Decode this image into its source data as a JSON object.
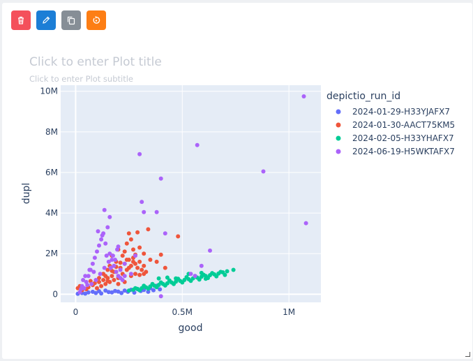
{
  "toolbar": {
    "buttons": [
      {
        "name": "delete-button",
        "icon": "trash-icon",
        "color": "#f4505b"
      },
      {
        "name": "edit-button",
        "icon": "pencil-icon",
        "color": "#1c7ed6"
      },
      {
        "name": "duplicate-button",
        "icon": "copy-icon",
        "color": "#868e96"
      },
      {
        "name": "reset-button",
        "icon": "reset-icon",
        "color": "#fd7e14"
      }
    ]
  },
  "plot": {
    "title_placeholder": "Click to enter Plot title",
    "subtitle_placeholder": "Click to enter Plot subtitle"
  },
  "chart_data": {
    "type": "scatter",
    "xlabel": "good",
    "ylabel": "dupl",
    "xlim": [
      -70000,
      1150000
    ],
    "ylim": [
      -400000,
      10300000
    ],
    "x_ticks": [
      {
        "value": 0,
        "label": "0"
      },
      {
        "value": 500000,
        "label": "0.5M"
      },
      {
        "value": 1000000,
        "label": "1M"
      }
    ],
    "y_ticks": [
      {
        "value": 0,
        "label": "0"
      },
      {
        "value": 2000000,
        "label": "2M"
      },
      {
        "value": 4000000,
        "label": "4M"
      },
      {
        "value": 6000000,
        "label": "6M"
      },
      {
        "value": 8000000,
        "label": "8M"
      },
      {
        "value": 10000000,
        "label": "10M"
      }
    ],
    "grid": true,
    "legend_position": "right",
    "legend_title": "depictio_run_id",
    "series": [
      {
        "name": "2024-01-29-H33YJAFX7",
        "color": "#636efa",
        "points": [
          [
            10000,
            20000
          ],
          [
            30000,
            60000
          ],
          [
            60000,
            90000
          ],
          [
            80000,
            120000
          ],
          [
            110000,
            150000
          ],
          [
            140000,
            180000
          ],
          [
            170000,
            90000
          ],
          [
            200000,
            130000
          ],
          [
            230000,
            180000
          ],
          [
            260000,
            220000
          ],
          [
            290000,
            250000
          ],
          [
            350000,
            300000
          ],
          [
            380000,
            420000
          ],
          [
            45000,
            30000
          ],
          [
            95000,
            60000
          ],
          [
            120000,
            40000
          ],
          [
            155000,
            110000
          ],
          [
            185000,
            160000
          ],
          [
            215000,
            60000
          ],
          [
            245000,
            120000
          ],
          [
            275000,
            80000
          ],
          [
            305000,
            160000
          ],
          [
            320000,
            210000
          ],
          [
            340000,
            120000
          ],
          [
            365000,
            200000
          ],
          [
            395000,
            240000
          ]
        ]
      },
      {
        "name": "2024-01-30-AACT75KM5",
        "color": "#ef553b",
        "points": [
          [
            10000,
            300000
          ],
          [
            20000,
            400000
          ],
          [
            30000,
            200000
          ],
          [
            50000,
            250000
          ],
          [
            60000,
            350000
          ],
          [
            80000,
            450000
          ],
          [
            100000,
            300000
          ],
          [
            110000,
            600000
          ],
          [
            120000,
            400000
          ],
          [
            130000,
            700000
          ],
          [
            140000,
            500000
          ],
          [
            150000,
            800000
          ],
          [
            160000,
            600000
          ],
          [
            170000,
            900000
          ],
          [
            180000,
            700000
          ],
          [
            190000,
            1100000
          ],
          [
            200000,
            800000
          ],
          [
            210000,
            1300000
          ],
          [
            220000,
            1000000
          ],
          [
            230000,
            1500000
          ],
          [
            240000,
            1200000
          ],
          [
            250000,
            1700000
          ],
          [
            260000,
            1400000
          ],
          [
            270000,
            1800000
          ],
          [
            280000,
            1500000
          ],
          [
            290000,
            1300000
          ],
          [
            300000,
            1600000
          ],
          [
            310000,
            1200000
          ],
          [
            320000,
            1000000
          ],
          [
            330000,
            1100000
          ],
          [
            150000,
            1200000
          ],
          [
            160000,
            1400000
          ],
          [
            170000,
            1900000
          ],
          [
            180000,
            1100000
          ],
          [
            190000,
            1600000
          ],
          [
            200000,
            2200000
          ],
          [
            220000,
            1900000
          ],
          [
            230000,
            2100000
          ],
          [
            240000,
            2500000
          ],
          [
            250000,
            3000000
          ],
          [
            260000,
            2700000
          ],
          [
            270000,
            2200000
          ],
          [
            280000,
            1950000
          ],
          [
            300000,
            2300000
          ],
          [
            320000,
            2000000
          ],
          [
            340000,
            3200000
          ],
          [
            350000,
            1700000
          ],
          [
            380000,
            1600000
          ],
          [
            400000,
            1950000
          ],
          [
            420000,
            1300000
          ],
          [
            480000,
            2850000
          ],
          [
            290000,
            3050000
          ],
          [
            140000,
            900000
          ],
          [
            90000,
            550000
          ],
          [
            70000,
            650000
          ],
          [
            200000,
            500000
          ],
          [
            230000,
            600000
          ],
          [
            260000,
            900000
          ],
          [
            280000,
            1000000
          ],
          [
            300000,
            950000
          ],
          [
            320000,
            1400000
          ],
          [
            240000,
            1700000
          ],
          [
            210000,
            1550000
          ],
          [
            190000,
            1350000
          ],
          [
            170000,
            1150000
          ],
          [
            130000,
            1000000
          ],
          [
            110000,
            800000
          ],
          [
            150000,
            650000
          ],
          [
            250000,
            1300000
          ],
          [
            270000,
            1600000
          ]
        ]
      },
      {
        "name": "2024-02-05-H33YHAFX7",
        "color": "#00cc96",
        "points": [
          [
            250000,
            180000
          ],
          [
            270000,
            220000
          ],
          [
            290000,
            260000
          ],
          [
            310000,
            300000
          ],
          [
            330000,
            340000
          ],
          [
            350000,
            380000
          ],
          [
            370000,
            420000
          ],
          [
            390000,
            460000
          ],
          [
            410000,
            500000
          ],
          [
            430000,
            540000
          ],
          [
            450000,
            580000
          ],
          [
            470000,
            620000
          ],
          [
            490000,
            660000
          ],
          [
            510000,
            700000
          ],
          [
            530000,
            740000
          ],
          [
            550000,
            780000
          ],
          [
            570000,
            820000
          ],
          [
            590000,
            860000
          ],
          [
            610000,
            900000
          ],
          [
            630000,
            940000
          ],
          [
            650000,
            980000
          ],
          [
            670000,
            1020000
          ],
          [
            690000,
            1080000
          ],
          [
            710000,
            1130000
          ],
          [
            740000,
            1200000
          ],
          [
            280000,
            300000
          ],
          [
            300000,
            200000
          ],
          [
            320000,
            420000
          ],
          [
            340000,
            280000
          ],
          [
            360000,
            500000
          ],
          [
            380000,
            350000
          ],
          [
            400000,
            580000
          ],
          [
            420000,
            430000
          ],
          [
            440000,
            680000
          ],
          [
            460000,
            500000
          ],
          [
            480000,
            760000
          ],
          [
            500000,
            580000
          ],
          [
            520000,
            840000
          ],
          [
            540000,
            660000
          ],
          [
            560000,
            900000
          ],
          [
            580000,
            720000
          ],
          [
            600000,
            960000
          ],
          [
            620000,
            800000
          ],
          [
            640000,
            1040000
          ],
          [
            660000,
            880000
          ],
          [
            680000,
            1100000
          ],
          [
            700000,
            950000
          ],
          [
            530000,
            1000000
          ],
          [
            590000,
            1050000
          ],
          [
            610000,
            760000
          ],
          [
            470000,
            780000
          ],
          [
            430000,
            820000
          ],
          [
            390000,
            780000
          ]
        ]
      },
      {
        "name": "2024-06-19-H5WKTAFX7",
        "color": "#ab63fa",
        "points": [
          [
            20000,
            100000
          ],
          [
            40000,
            300000
          ],
          [
            50000,
            600000
          ],
          [
            60000,
            900000
          ],
          [
            70000,
            1200000
          ],
          [
            80000,
            1500000
          ],
          [
            90000,
            1800000
          ],
          [
            100000,
            2100000
          ],
          [
            110000,
            2400000
          ],
          [
            120000,
            2700000
          ],
          [
            130000,
            3000000
          ],
          [
            140000,
            2500000
          ],
          [
            150000,
            3300000
          ],
          [
            160000,
            2000000
          ],
          [
            170000,
            1700000
          ],
          [
            180000,
            1400000
          ],
          [
            190000,
            1100000
          ],
          [
            200000,
            900000
          ],
          [
            210000,
            800000
          ],
          [
            220000,
            700000
          ],
          [
            30000,
            400000
          ],
          [
            55000,
            450000
          ],
          [
            75000,
            500000
          ],
          [
            95000,
            700000
          ],
          [
            115000,
            1000000
          ],
          [
            135000,
            1300000
          ],
          [
            155000,
            1600000
          ],
          [
            175000,
            1900000
          ],
          [
            195000,
            2200000
          ],
          [
            105000,
            3100000
          ],
          [
            125000,
            2900000
          ],
          [
            135000,
            4150000
          ],
          [
            160000,
            3800000
          ],
          [
            200000,
            2350000
          ],
          [
            230000,
            1500000
          ],
          [
            260000,
            1000000
          ],
          [
            280000,
            1900000
          ],
          [
            300000,
            6900000
          ],
          [
            310000,
            4550000
          ],
          [
            320000,
            4050000
          ],
          [
            380000,
            4050000
          ],
          [
            400000,
            5700000
          ],
          [
            420000,
            3000000
          ],
          [
            570000,
            7350000
          ],
          [
            590000,
            1400000
          ],
          [
            630000,
            2150000
          ],
          [
            540000,
            1000000
          ],
          [
            560000,
            900000
          ],
          [
            880000,
            6050000
          ],
          [
            1070000,
            9750000
          ],
          [
            1080000,
            3500000
          ],
          [
            400000,
            -100000
          ],
          [
            45000,
            900000
          ],
          [
            65000,
            1200000
          ],
          [
            85000,
            1100000
          ],
          [
            145000,
            1900000
          ],
          [
            165000,
            1300000
          ],
          [
            185000,
            1700000
          ],
          [
            210000,
            1200000
          ],
          [
            230000,
            900000
          ],
          [
            35000,
            700000
          ],
          [
            25000,
            250000
          ]
        ]
      }
    ]
  }
}
